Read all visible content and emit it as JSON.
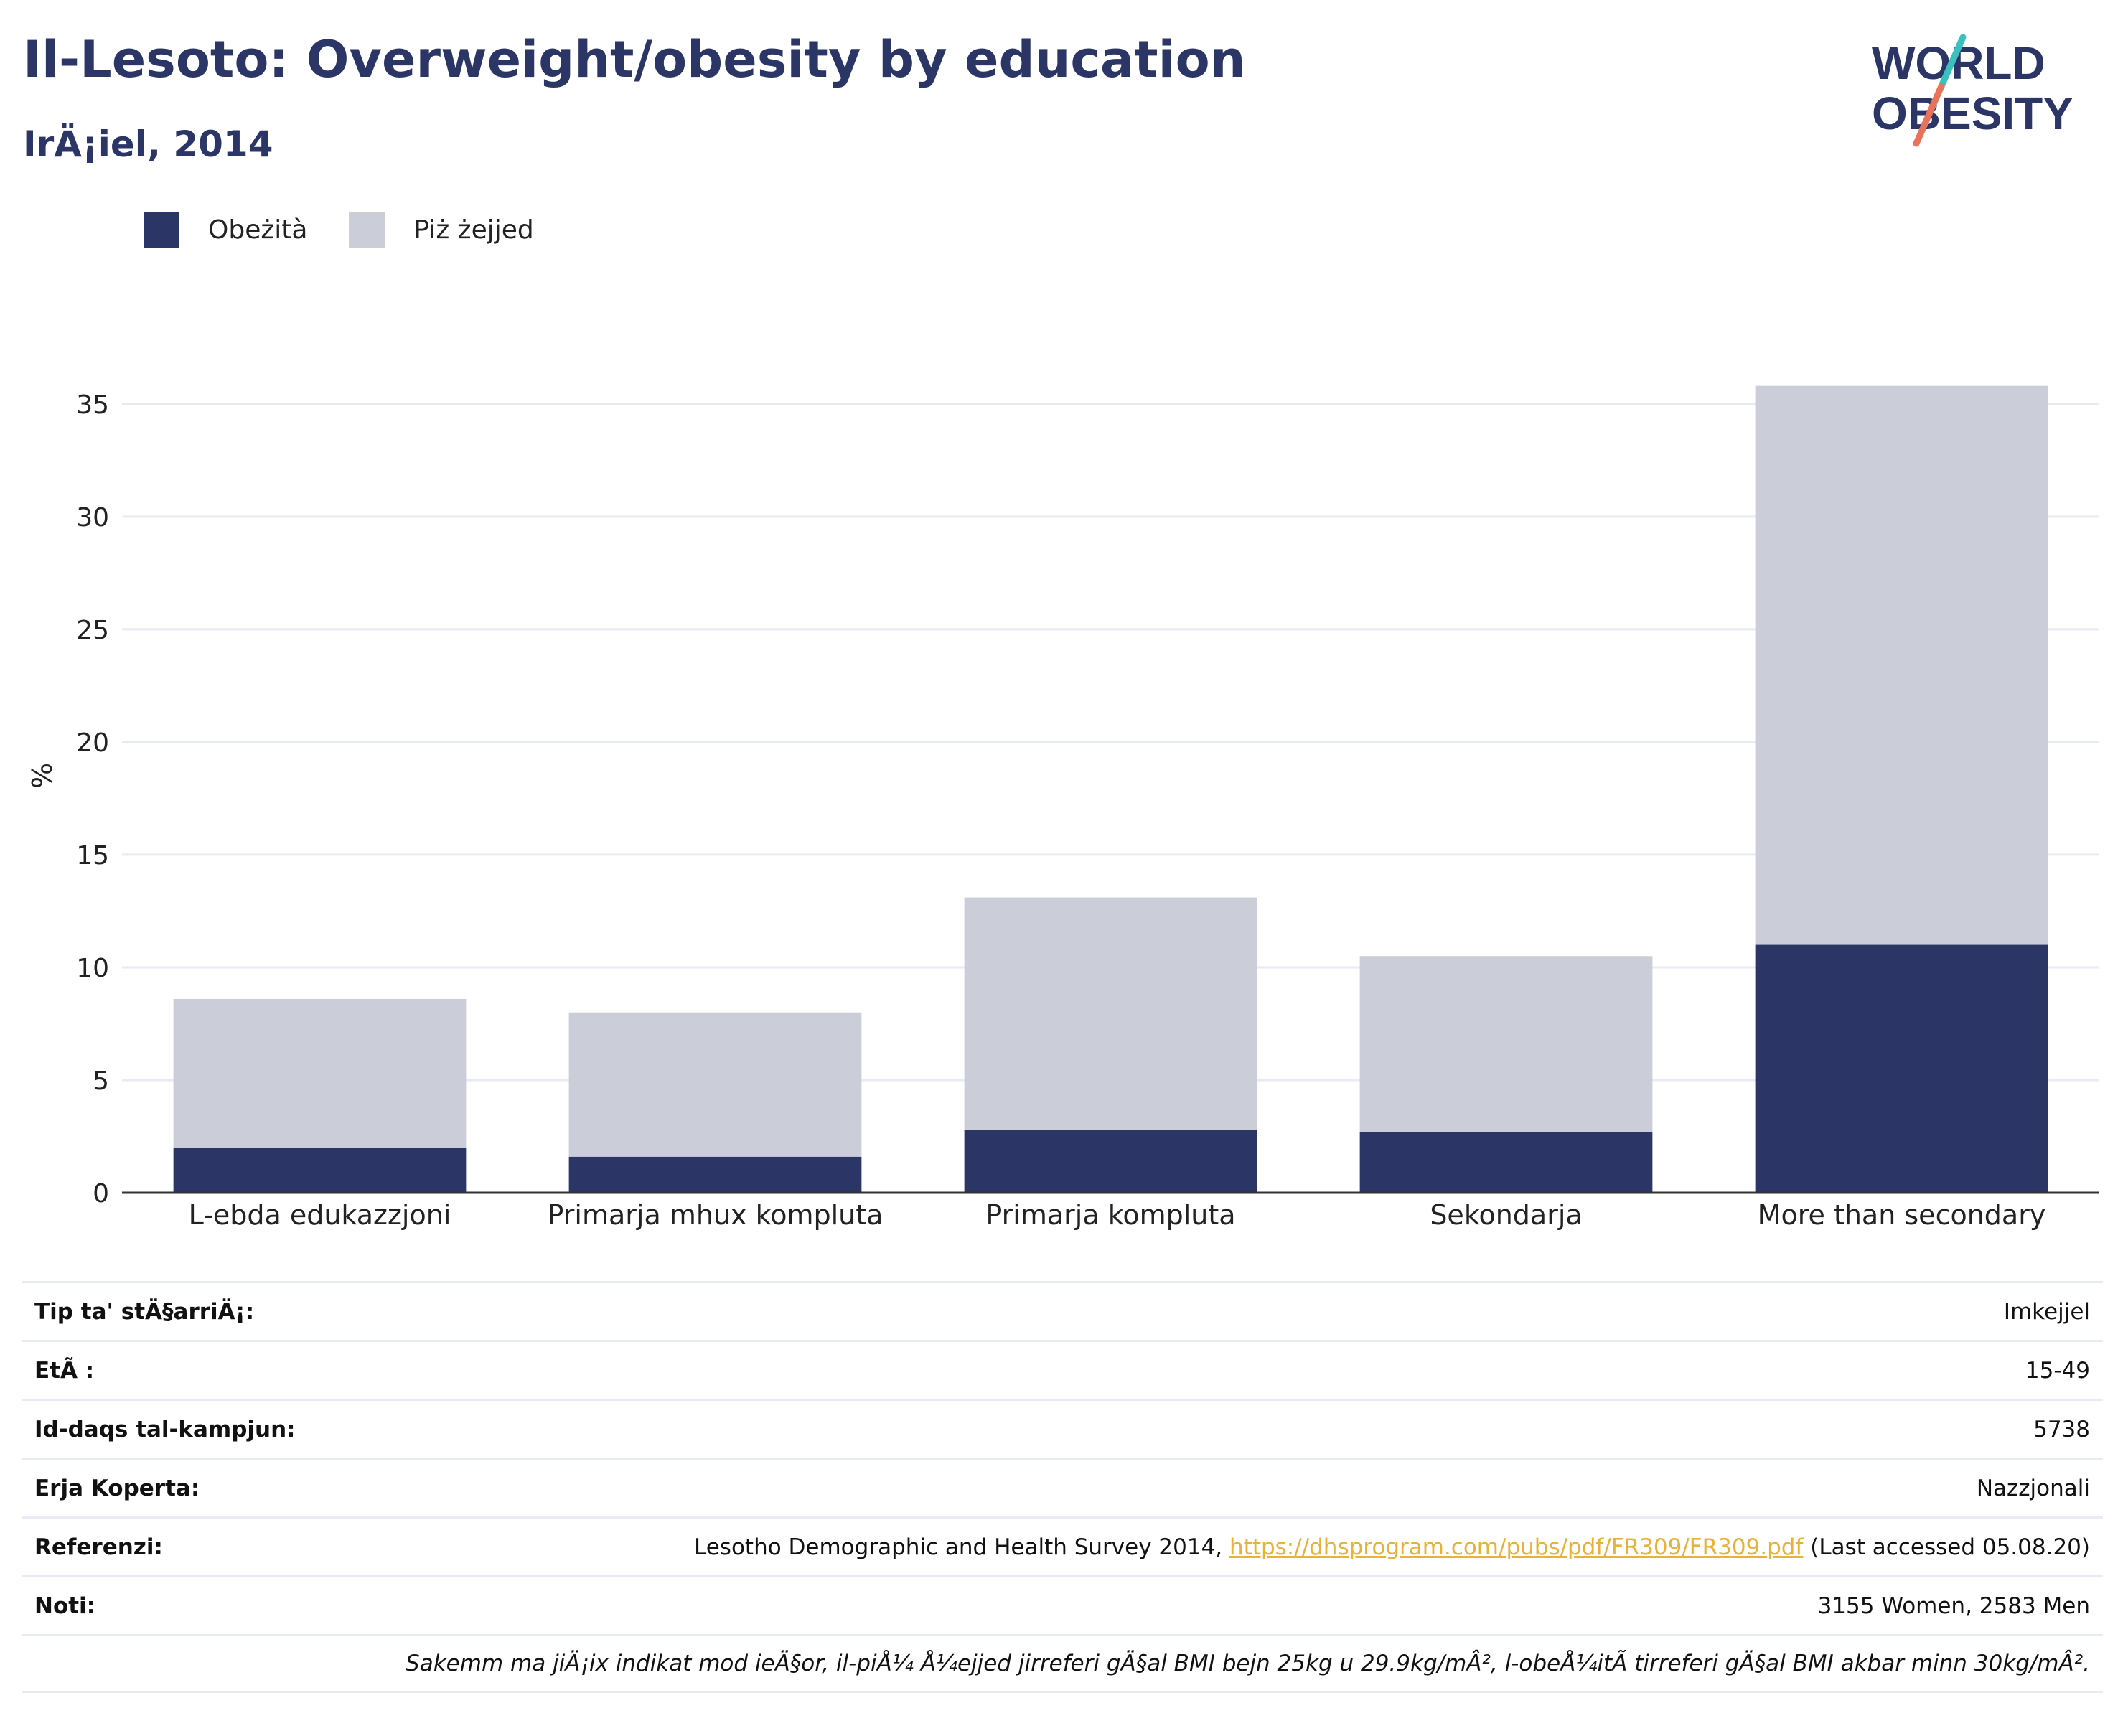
{
  "header": {
    "title": "Il-Lesoto: Overweight/obesity by education",
    "subtitle": "IrÄ¡iel, 2014",
    "logo_line1": "WORLD",
    "logo_line2": "OBESITY"
  },
  "legend": {
    "items": [
      {
        "label": "Obeżità",
        "color": "#2b3667"
      },
      {
        "label": "Piż żejjed",
        "color": "#cbcdd8"
      }
    ]
  },
  "chart_data": {
    "type": "bar",
    "stacked": true,
    "categories": [
      "L-ebda edukazzjoni",
      "Primarja mhux kompluta",
      "Primarja kompluta",
      "Sekondarja",
      "More than secondary"
    ],
    "series": [
      {
        "name": "Obeżità",
        "values": [
          2.0,
          1.6,
          2.8,
          2.7,
          11.0
        ],
        "color": "#2b3667"
      },
      {
        "name": "Piż żejjed",
        "values": [
          6.6,
          6.4,
          10.3,
          7.8,
          24.8
        ],
        "color": "#cbcdd8"
      }
    ],
    "ylabel": "%",
    "yticks": [
      0,
      5,
      10,
      15,
      20,
      25,
      30,
      35
    ],
    "ylim": [
      0,
      37
    ],
    "grid": true,
    "legend_position": "top-left"
  },
  "info_table": {
    "rows": [
      {
        "label": "Tip ta' stÄ§arriÄ¡:",
        "value": "Imkejjel"
      },
      {
        "label": "EtÃ :",
        "value": "15-49"
      },
      {
        "label": "Id-daqs tal-kampjun:",
        "value": "5738"
      },
      {
        "label": "Erja Koperta:",
        "value": "Nazzjonali"
      }
    ],
    "reference": {
      "label": "Referenzi:",
      "text_before": "Lesotho Demographic and Health Survey 2014, ",
      "link": "https://dhsprogram.com/pubs/pdf/FR309/FR309.pdf",
      "text_after": " (Last accessed 05.08.20)"
    },
    "notes": {
      "label": "Noti:",
      "value": "3155 Women, 2583 Men"
    },
    "footnote": "Sakemm ma jiÄ¡ix indikat mod ieÄ§or, il-piÅ¼ Å¼ejjed jirreferi gÄ§al BMI bejn 25kg u 29.9kg/mÂ², l-obeÅ¼itÃ  tirreferi gÄ§al BMI akbar minn 30kg/mÂ²."
  }
}
